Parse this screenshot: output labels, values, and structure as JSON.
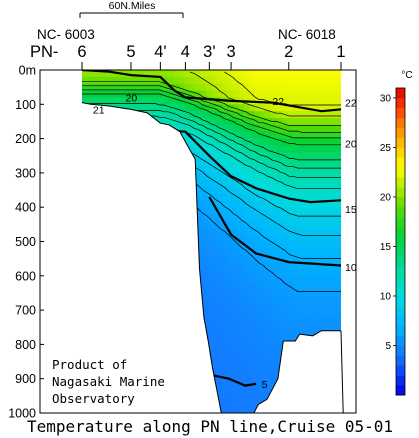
{
  "chart_data": {
    "type": "heatmap",
    "title": "Temperature along PN line,Cruise 05-01",
    "line_name": "PN-",
    "stations": [
      "6",
      "5",
      "4'",
      "4",
      "3'",
      "3",
      "2",
      "1"
    ],
    "station_x_km": [
      0,
      45,
      72,
      95,
      117,
      137,
      190,
      238
    ],
    "left_station_id": "NC- 6003",
    "right_station_id": "NC- 6018",
    "scale_bar_label": "60N.Miles",
    "y_unit": "m",
    "y_ticks": [
      "0m",
      "100",
      "200",
      "300",
      "400",
      "500",
      "600",
      "700",
      "800",
      "900",
      "1000"
    ],
    "y_values": [
      0,
      100,
      200,
      300,
      400,
      500,
      600,
      700,
      800,
      900,
      1000
    ],
    "ylim": [
      0,
      1000
    ],
    "colorbar": {
      "unit": "°C",
      "ticks": [
        "5",
        "10",
        "15",
        "20",
        "25",
        "30"
      ],
      "min": 0,
      "max": 31,
      "stops": [
        {
          "t": 0,
          "color": "#0000e6"
        },
        {
          "t": 4,
          "color": "#1478ff"
        },
        {
          "t": 7,
          "color": "#00b4ff"
        },
        {
          "t": 10,
          "color": "#00dcdc"
        },
        {
          "t": 13,
          "color": "#00dc96"
        },
        {
          "t": 16,
          "color": "#00d23c"
        },
        {
          "t": 19,
          "color": "#5adc00"
        },
        {
          "t": 21,
          "color": "#b4eb00"
        },
        {
          "t": 23,
          "color": "#ffff00"
        },
        {
          "t": 25,
          "color": "#ffc800"
        },
        {
          "t": 27,
          "color": "#ff8c00"
        },
        {
          "t": 29,
          "color": "#ff3c00"
        },
        {
          "t": 31,
          "color": "#dc0000"
        }
      ]
    },
    "bold_isotherms": [
      {
        "t": 20,
        "points": [
          [
            0,
            0
          ],
          [
            25,
            5
          ],
          [
            45,
            15
          ],
          [
            72,
            20
          ],
          [
            85,
            60
          ],
          [
            95,
            80
          ],
          [
            137,
            90
          ],
          [
            175,
            95
          ],
          [
            220,
            120
          ],
          [
            238,
            115
          ]
        ]
      },
      {
        "t": 15,
        "points": [
          [
            72,
            175
          ],
          [
            95,
            180
          ],
          [
            117,
            250
          ],
          [
            137,
            310
          ],
          [
            160,
            345
          ],
          [
            190,
            375
          ],
          [
            210,
            385
          ],
          [
            238,
            380
          ]
        ]
      },
      {
        "t": 10,
        "points": [
          [
            117,
            370
          ],
          [
            137,
            480
          ],
          [
            160,
            535
          ],
          [
            190,
            560
          ],
          [
            238,
            570
          ]
        ]
      },
      {
        "t": 5,
        "points": [
          [
            120,
            890
          ],
          [
            135,
            900
          ],
          [
            150,
            920
          ],
          [
            160,
            915
          ]
        ]
      }
    ],
    "contour_labels": [
      {
        "text": "20",
        "x_km": 40,
        "depth": 80
      },
      {
        "text": "22",
        "x_km": 175,
        "depth": 90
      },
      {
        "text": "21",
        "x_km": 10,
        "depth": 115
      },
      {
        "text": "22",
        "x_km": 238,
        "depth": 95
      },
      {
        "text": "20",
        "x_km": 238,
        "depth": 215
      },
      {
        "text": "15",
        "x_km": 238,
        "depth": 405
      },
      {
        "text": "10",
        "x_km": 238,
        "depth": 575
      },
      {
        "text": "5",
        "x_km": 165,
        "depth": 915
      }
    ]
  },
  "note": {
    "line1": "Product of",
    "line2": "Nagasaki Marine",
    "line3": "Observatory"
  }
}
